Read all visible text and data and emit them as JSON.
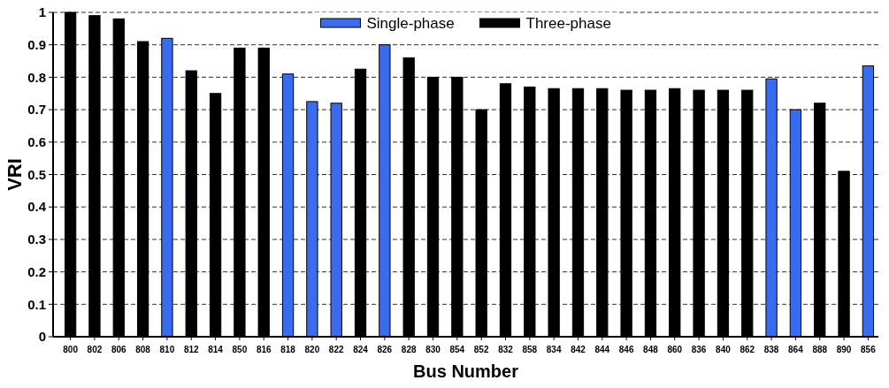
{
  "chart_data": {
    "type": "bar",
    "xlabel": "Bus Number",
    "ylabel": "VRI",
    "categories": [
      "800",
      "802",
      "806",
      "808",
      "810",
      "812",
      "814",
      "850",
      "816",
      "818",
      "820",
      "822",
      "824",
      "826",
      "828",
      "830",
      "854",
      "852",
      "832",
      "858",
      "834",
      "842",
      "844",
      "846",
      "848",
      "860",
      "836",
      "840",
      "862",
      "838",
      "864",
      "888",
      "890",
      "856"
    ],
    "series": [
      {
        "name": "Single-phase",
        "color": "#3a6cf0",
        "values": [
          null,
          null,
          null,
          null,
          0.92,
          null,
          null,
          null,
          null,
          0.81,
          0.725,
          0.72,
          null,
          0.9,
          null,
          null,
          null,
          null,
          null,
          null,
          null,
          null,
          null,
          null,
          null,
          null,
          null,
          null,
          null,
          0.795,
          0.7,
          null,
          null,
          0.835
        ]
      },
      {
        "name": "Three-phase",
        "color": "#000000",
        "values": [
          1.0,
          0.99,
          0.98,
          0.91,
          null,
          0.82,
          0.75,
          0.89,
          0.89,
          null,
          null,
          null,
          0.825,
          null,
          0.86,
          0.8,
          0.8,
          0.7,
          0.78,
          0.77,
          0.765,
          0.765,
          0.765,
          0.76,
          0.76,
          0.765,
          0.76,
          0.76,
          0.76,
          null,
          null,
          0.72,
          0.51,
          null
        ]
      }
    ],
    "ylim": [
      0,
      1
    ],
    "yticks": [
      0,
      0.1,
      0.2,
      0.3,
      0.4,
      0.5,
      0.6,
      0.7,
      0.8,
      0.9,
      1
    ],
    "grid": "y",
    "legend": "top"
  }
}
